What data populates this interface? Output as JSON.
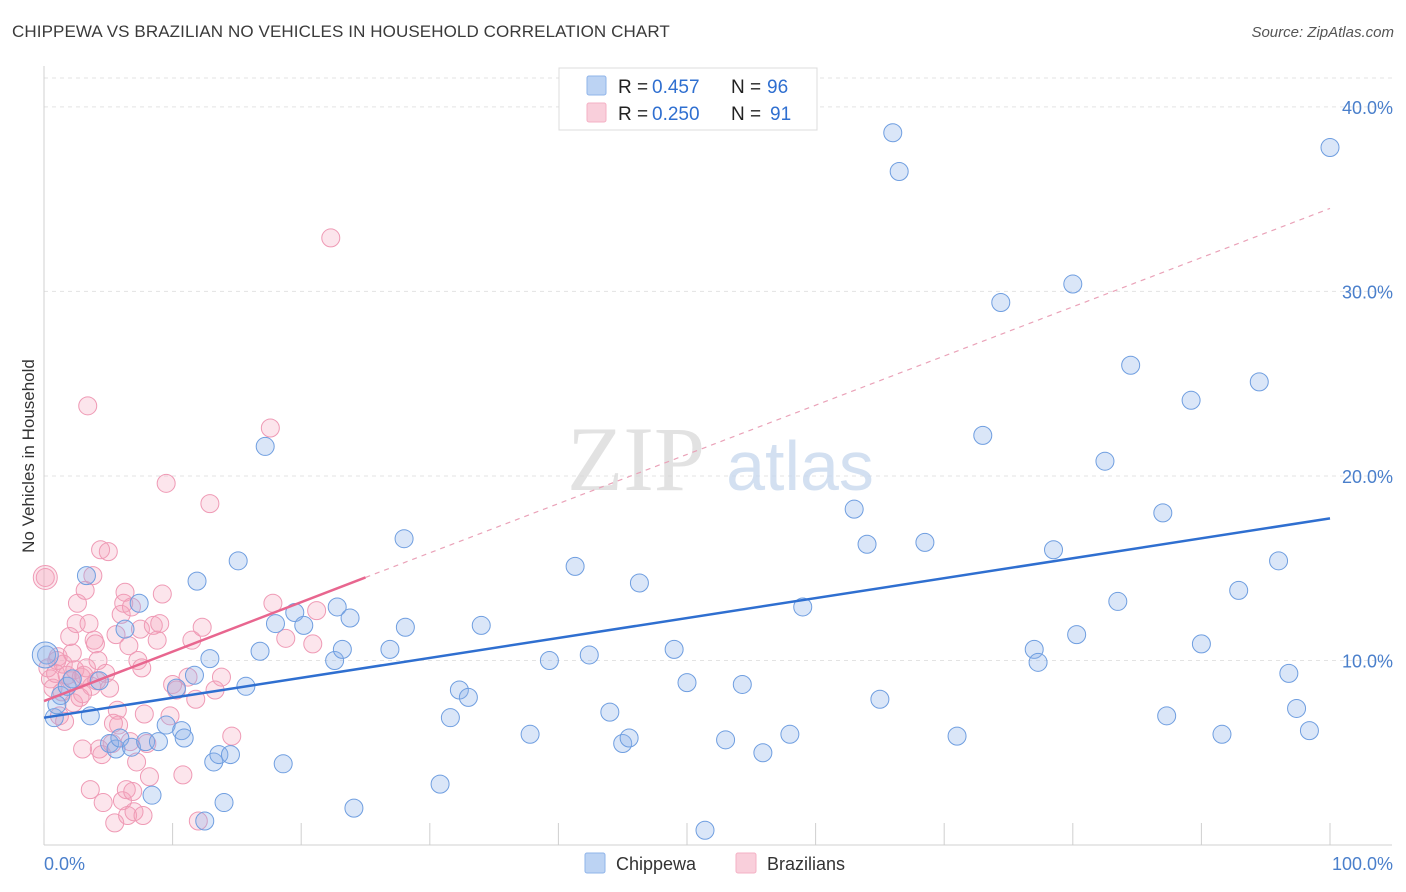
{
  "header": {
    "title": "CHIPPEWA VS BRAZILIAN NO VEHICLES IN HOUSEHOLD CORRELATION CHART",
    "source": "Source: ZipAtlas.com"
  },
  "watermark": {
    "zip": "ZIP",
    "atlas": "atlas"
  },
  "legend_stats": [
    {
      "r_label": "R =",
      "r_value": "0.457",
      "n_label": "N =",
      "n_value": "96",
      "color": "#8fb4ea"
    },
    {
      "r_label": "R =",
      "r_value": "0.250",
      "n_label": "N =",
      "n_value": "91",
      "color": "#f4b0c4"
    }
  ],
  "chart_data": {
    "type": "scatter",
    "title": "CHIPPEWA VS BRAZILIAN NO VEHICLES IN HOUSEHOLD CORRELATION CHART",
    "xlabel": "",
    "ylabel": "No Vehicles in Household",
    "xlim": [
      0,
      100
    ],
    "ylim": [
      0,
      42
    ],
    "x_tick_labels": [
      "0.0%",
      "100.0%"
    ],
    "y_ticks": [
      10,
      20,
      30,
      40
    ],
    "y_tick_labels": [
      "10.0%",
      "20.0%",
      "30.0%",
      "40.0%"
    ],
    "grid": true,
    "legend_position": "bottom-center",
    "colors": {
      "chippewa": "#4a86d8",
      "brazilians": "#ef7fa2",
      "trend_blue": "#2f6fd0",
      "trend_pink": "#e8668f"
    },
    "series": [
      {
        "name": "Chippewa",
        "color": "#4a86d8",
        "trend": {
          "x0": 0,
          "y0": 6.9,
          "x1": 100,
          "y1": 17.7
        },
        "points": [
          [
            0.2,
            10.3
          ],
          [
            0.8,
            6.9
          ],
          [
            1.3,
            8.1
          ],
          [
            1.8,
            8.6
          ],
          [
            2.2,
            9.0
          ],
          [
            3.3,
            14.6
          ],
          [
            3.6,
            7.0
          ],
          [
            4.3,
            8.9
          ],
          [
            5.1,
            5.5
          ],
          [
            5.6,
            5.2
          ],
          [
            5.9,
            5.8
          ],
          [
            6.3,
            11.7
          ],
          [
            6.8,
            5.3
          ],
          [
            7.4,
            13.1
          ],
          [
            7.9,
            5.6
          ],
          [
            8.4,
            2.7
          ],
          [
            8.9,
            5.6
          ],
          [
            9.5,
            6.5
          ],
          [
            10.3,
            8.5
          ],
          [
            10.7,
            6.2
          ],
          [
            10.9,
            5.8
          ],
          [
            11.7,
            9.2
          ],
          [
            11.9,
            14.3
          ],
          [
            12.5,
            1.3
          ],
          [
            12.9,
            10.1
          ],
          [
            13.2,
            4.5
          ],
          [
            13.6,
            4.9
          ],
          [
            14.0,
            2.3
          ],
          [
            14.5,
            4.9
          ],
          [
            15.1,
            15.4
          ],
          [
            15.7,
            8.6
          ],
          [
            16.8,
            10.5
          ],
          [
            17.2,
            21.6
          ],
          [
            18.0,
            12.0
          ],
          [
            18.6,
            4.4
          ],
          [
            19.5,
            12.6
          ],
          [
            20.2,
            11.9
          ],
          [
            22.8,
            12.9
          ],
          [
            22.6,
            10.0
          ],
          [
            23.2,
            10.6
          ],
          [
            23.8,
            12.3
          ],
          [
            24.1,
            2.0
          ],
          [
            26.9,
            10.6
          ],
          [
            28.0,
            16.6
          ],
          [
            28.1,
            11.8
          ],
          [
            30.8,
            3.3
          ],
          [
            31.6,
            6.9
          ],
          [
            32.3,
            8.4
          ],
          [
            33.0,
            8.0
          ],
          [
            34.0,
            11.9
          ],
          [
            37.8,
            6.0
          ],
          [
            39.3,
            10.0
          ],
          [
            41.3,
            15.1
          ],
          [
            42.4,
            10.3
          ],
          [
            44.0,
            7.2
          ],
          [
            45.0,
            5.5
          ],
          [
            45.5,
            5.8
          ],
          [
            46.3,
            14.2
          ],
          [
            49.0,
            10.6
          ],
          [
            50.0,
            8.8
          ],
          [
            51.4,
            0.8
          ],
          [
            53.0,
            5.7
          ],
          [
            54.3,
            8.7
          ],
          [
            55.9,
            5.0
          ],
          [
            58.0,
            6.0
          ],
          [
            59.0,
            12.9
          ],
          [
            63.0,
            18.2
          ],
          [
            64.0,
            16.3
          ],
          [
            65.0,
            7.9
          ],
          [
            66.0,
            38.6
          ],
          [
            66.5,
            36.5
          ],
          [
            68.5,
            16.4
          ],
          [
            71.0,
            5.9
          ],
          [
            73.0,
            22.2
          ],
          [
            74.4,
            29.4
          ],
          [
            77.0,
            10.6
          ],
          [
            77.3,
            9.9
          ],
          [
            78.5,
            16.0
          ],
          [
            80.0,
            30.4
          ],
          [
            80.3,
            11.4
          ],
          [
            82.5,
            20.8
          ],
          [
            83.5,
            13.2
          ],
          [
            84.5,
            26.0
          ],
          [
            87.0,
            18.0
          ],
          [
            87.3,
            7.0
          ],
          [
            89.2,
            24.1
          ],
          [
            90.0,
            10.9
          ],
          [
            91.6,
            6.0
          ],
          [
            92.9,
            13.8
          ],
          [
            94.5,
            25.1
          ],
          [
            96.0,
            15.4
          ],
          [
            96.8,
            9.3
          ],
          [
            97.4,
            7.4
          ],
          [
            98.4,
            6.2
          ],
          [
            100.0,
            37.8
          ],
          [
            1.0,
            7.6
          ]
        ]
      },
      {
        "name": "Brazilians",
        "color": "#ef7fa2",
        "trend": {
          "x0": 0,
          "y0": 7.8,
          "x1": 25,
          "y1": 14.5
        },
        "trend_extension": {
          "x0": 25,
          "y0": 14.5,
          "x1": 100,
          "y1": 34.5
        },
        "points": [
          [
            0.1,
            14.5
          ],
          [
            0.3,
            9.6
          ],
          [
            0.5,
            9.0
          ],
          [
            0.7,
            8.5
          ],
          [
            0.9,
            9.3
          ],
          [
            1.1,
            10.2
          ],
          [
            1.2,
            7.0
          ],
          [
            1.4,
            8.3
          ],
          [
            1.5,
            9.8
          ],
          [
            1.6,
            6.7
          ],
          [
            1.8,
            9.2
          ],
          [
            2.0,
            11.3
          ],
          [
            2.1,
            8.9
          ],
          [
            2.3,
            7.7
          ],
          [
            2.4,
            9.5
          ],
          [
            2.5,
            12.0
          ],
          [
            2.6,
            13.1
          ],
          [
            2.8,
            8.0
          ],
          [
            2.9,
            9.1
          ],
          [
            3.0,
            5.2
          ],
          [
            3.1,
            9.2
          ],
          [
            3.2,
            13.8
          ],
          [
            3.3,
            9.6
          ],
          [
            3.4,
            23.8
          ],
          [
            3.5,
            12.0
          ],
          [
            3.6,
            3.0
          ],
          [
            3.7,
            8.6
          ],
          [
            3.8,
            14.6
          ],
          [
            3.9,
            11.1
          ],
          [
            4.0,
            10.9
          ],
          [
            4.2,
            10.0
          ],
          [
            4.3,
            5.2
          ],
          [
            4.4,
            16.0
          ],
          [
            4.5,
            4.9
          ],
          [
            4.6,
            2.3
          ],
          [
            4.8,
            9.3
          ],
          [
            5.0,
            15.9
          ],
          [
            5.1,
            8.5
          ],
          [
            5.3,
            5.5
          ],
          [
            5.5,
            1.2
          ],
          [
            5.6,
            11.4
          ],
          [
            5.7,
            7.3
          ],
          [
            5.8,
            6.5
          ],
          [
            6.0,
            12.5
          ],
          [
            6.1,
            2.4
          ],
          [
            6.2,
            13.1
          ],
          [
            6.3,
            13.7
          ],
          [
            6.4,
            3.0
          ],
          [
            6.5,
            1.6
          ],
          [
            6.6,
            10.8
          ],
          [
            6.8,
            12.9
          ],
          [
            6.9,
            2.9
          ],
          [
            7.0,
            1.8
          ],
          [
            7.2,
            4.5
          ],
          [
            7.3,
            10.0
          ],
          [
            7.5,
            11.7
          ],
          [
            7.6,
            9.6
          ],
          [
            7.7,
            1.6
          ],
          [
            8.0,
            5.5
          ],
          [
            8.2,
            3.7
          ],
          [
            8.5,
            11.9
          ],
          [
            8.8,
            11.1
          ],
          [
            9.0,
            12.0
          ],
          [
            9.2,
            13.6
          ],
          [
            9.5,
            19.6
          ],
          [
            10.0,
            8.7
          ],
          [
            10.3,
            8.4
          ],
          [
            10.8,
            3.8
          ],
          [
            11.2,
            9.1
          ],
          [
            11.5,
            11.1
          ],
          [
            11.8,
            7.9
          ],
          [
            12.0,
            1.3
          ],
          [
            12.3,
            11.8
          ],
          [
            12.9,
            18.5
          ],
          [
            13.3,
            8.4
          ],
          [
            13.8,
            9.1
          ],
          [
            14.6,
            5.9
          ],
          [
            17.6,
            22.6
          ],
          [
            17.8,
            13.1
          ],
          [
            18.8,
            11.2
          ],
          [
            20.9,
            10.9
          ],
          [
            21.2,
            12.7
          ],
          [
            22.3,
            32.9
          ],
          [
            1.0,
            10.0
          ],
          [
            2.2,
            10.4
          ],
          [
            4.1,
            8.9
          ],
          [
            5.4,
            6.6
          ],
          [
            7.8,
            7.1
          ],
          [
            9.8,
            7.0
          ],
          [
            6.7,
            5.6
          ],
          [
            3.0,
            8.2
          ]
        ]
      }
    ]
  },
  "bottom_legend": [
    {
      "label": "Chippewa",
      "color": "#8fb4ea"
    },
    {
      "label": "Brazilians",
      "color": "#f4b0c4"
    }
  ]
}
